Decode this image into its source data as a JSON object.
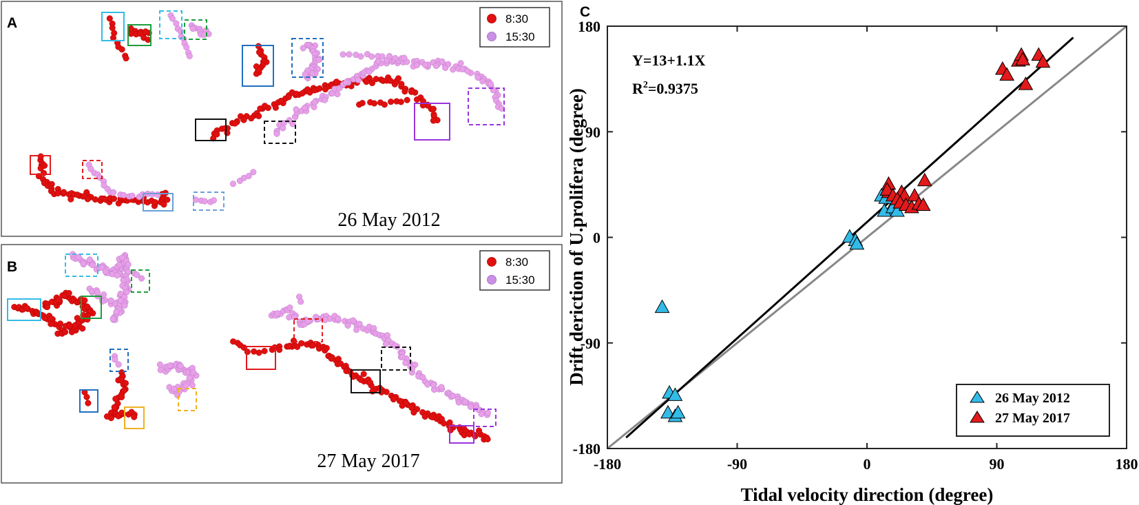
{
  "panels": {
    "a": {
      "label": "A",
      "date": "26 May 2012",
      "legend": [
        "8:30",
        "15:30"
      ]
    },
    "b": {
      "label": "B",
      "date": "27 May 2017",
      "legend": [
        "8:30",
        "15:30"
      ]
    },
    "c": {
      "label": "C"
    }
  },
  "colors": {
    "t830": "#e01010",
    "t1530": "#e8a0e8",
    "cyan": "#33bbe8",
    "red_tri": "#e31a1c"
  },
  "chart_data": {
    "type": "scatter",
    "title": "",
    "xlabel": "Tidal velocity direction (degree)",
    "ylabel": "Drift deriction of U.prolifera (degree)",
    "xlim": [
      -180,
      180
    ],
    "ylim": [
      -180,
      180
    ],
    "xticks": [
      "-180",
      "-90",
      "0",
      "90",
      "180"
    ],
    "yticks": [
      "-180",
      "-90",
      "0",
      "90",
      "180"
    ],
    "equation": "Y=13+1.1X",
    "r2_label": "R",
    "r2_sup": "2",
    "r2_value": "=0.9375",
    "fit": {
      "intercept": 13,
      "slope": 1.1,
      "x_range": [
        -167,
        143
      ]
    },
    "reference_line": "y = x",
    "series": [
      {
        "name": "26 May 2012",
        "color": "#33bbe8",
        "points": [
          [
            -142,
            -60
          ],
          [
            -137,
            -133
          ],
          [
            -133,
            -135
          ],
          [
            -138,
            -150
          ],
          [
            -133,
            -153
          ],
          [
            -131,
            -150
          ],
          [
            -12,
            0
          ],
          [
            -8,
            -3
          ],
          [
            -7,
            -6
          ],
          [
            10,
            35
          ],
          [
            13,
            33
          ],
          [
            16,
            22
          ],
          [
            12,
            22
          ],
          [
            18,
            25
          ],
          [
            21,
            22
          ]
        ]
      },
      {
        "name": "27 May 2017",
        "color": "#e31a1c",
        "points": [
          [
            15,
            45
          ],
          [
            15,
            38
          ],
          [
            14,
            40
          ],
          [
            18,
            35
          ],
          [
            24,
            38
          ],
          [
            21,
            32
          ],
          [
            26,
            35
          ],
          [
            23,
            29
          ],
          [
            27,
            27
          ],
          [
            33,
            35
          ],
          [
            31,
            25
          ],
          [
            36,
            28
          ],
          [
            39,
            27
          ],
          [
            40,
            48
          ],
          [
            94,
            143
          ],
          [
            97,
            138
          ],
          [
            105,
            150
          ],
          [
            107,
            155
          ],
          [
            108,
            151
          ],
          [
            110,
            130
          ],
          [
            119,
            155
          ],
          [
            122,
            149
          ]
        ]
      }
    ]
  }
}
